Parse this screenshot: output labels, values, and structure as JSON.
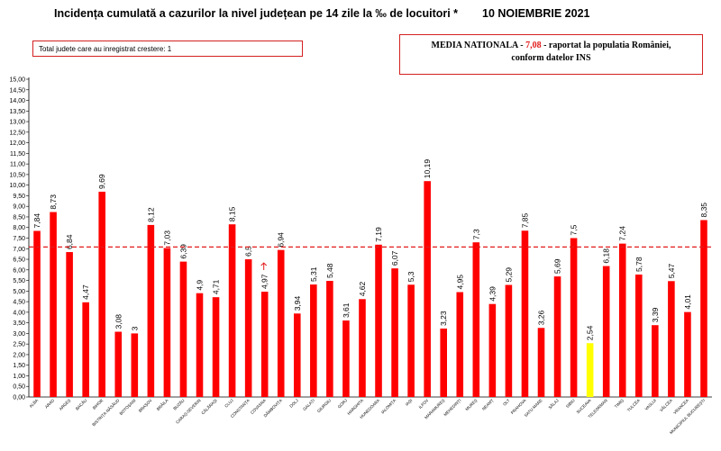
{
  "header": {
    "title": "Incidența cumulată a cazurilor la nivel județean pe 14 zile la ‰ de locuitori *",
    "date": "10 NOIEMBRIE 2021"
  },
  "info_left": "Total judete care au inregistrat crestere: 1",
  "info_right": {
    "prefix": "MEDIA NATIONALA",
    "value": "7,08",
    "suffix": "raportat la populatia României,",
    "line2": "conform datelor INS"
  },
  "colors": {
    "bar": "#ff0000",
    "highlight": "#ffff00",
    "average_line": "#e21b1b",
    "increase_label": "#e21b1b"
  },
  "chart_data": {
    "type": "bar",
    "title": "Incidența cumulată a cazurilor la nivel județean pe 14 zile la ‰ de locuitori *",
    "xlabel": "",
    "ylabel": "",
    "ylim": [
      0,
      15
    ],
    "ytick_step": 0.5,
    "grid": false,
    "average": 7.08,
    "categories": [
      "ALBA",
      "ARAD",
      "ARGEȘ",
      "BACĂU",
      "BIHOR",
      "BISTRIȚA-NĂSĂUD",
      "BOTOȘANI",
      "BRAȘOV",
      "BRĂILA",
      "BUZĂU",
      "CARAȘ-SEVERIN",
      "CĂLĂRAȘI",
      "CLUJ",
      "CONSTANȚA",
      "COVASNA",
      "DÂMBOVIȚA",
      "DOLJ",
      "GALAȚI",
      "GIURGIU",
      "GORJ",
      "HARGHITA",
      "HUNEDOARA",
      "IALOMIȚA",
      "IAȘI",
      "ILFOV",
      "MARAMUREȘ",
      "MEHEDINȚI",
      "MUREȘ",
      "NEAMȚ",
      "OLT",
      "PRAHOVA",
      "SATU MARE",
      "SĂLAJ",
      "SIBIU",
      "SUCEAVA",
      "TELEORMAN",
      "TIMIȘ",
      "TULCEA",
      "VASLUI",
      "VÂLCEA",
      "VRANCEA",
      "MUNICIPIUL BUCUREȘTI"
    ],
    "values": [
      7.84,
      8.73,
      6.84,
      4.47,
      9.69,
      3.08,
      3.0,
      8.12,
      7.03,
      6.39,
      4.9,
      4.71,
      8.15,
      6.5,
      4.97,
      6.94,
      3.94,
      5.31,
      5.48,
      3.61,
      4.62,
      7.19,
      6.07,
      5.3,
      10.19,
      3.23,
      4.95,
      7.3,
      4.39,
      5.29,
      7.85,
      3.26,
      5.69,
      7.5,
      2.54,
      6.18,
      7.24,
      5.78,
      3.39,
      5.47,
      4.01,
      8.35
    ],
    "value_labels": [
      "7,84",
      "8,73",
      "6,84",
      "4,47",
      "9,69",
      "3,08",
      "3",
      "8,12",
      "7,03",
      "6,39",
      "4,9",
      "4,71",
      "8,15",
      "6,5",
      "4,97",
      "6,94",
      "3,94",
      "5,31",
      "5,48",
      "3,61",
      "4,62",
      "7,19",
      "6,07",
      "5,3",
      "10,19",
      "3,23",
      "4,95",
      "7,3",
      "4,39",
      "5,29",
      "7,85",
      "3,26",
      "5,69",
      "7,5",
      "2,54",
      "6,18",
      "7,24",
      "5,78",
      "3,39",
      "5,47",
      "4,01",
      "8,35"
    ],
    "highlight_index": 34,
    "increase_index": 14,
    "yticks": [
      "0,00",
      "0,50",
      "1,00",
      "1,50",
      "2,00",
      "2,50",
      "3,00",
      "3,50",
      "4,00",
      "4,50",
      "5,00",
      "5,50",
      "6,00",
      "6,50",
      "7,00",
      "7,50",
      "8,00",
      "8,50",
      "9,00",
      "9,50",
      "10,00",
      "10,50",
      "11,00",
      "11,50",
      "12,00",
      "12,50",
      "13,00",
      "13,50",
      "14,00",
      "14,50",
      "15,00"
    ]
  }
}
